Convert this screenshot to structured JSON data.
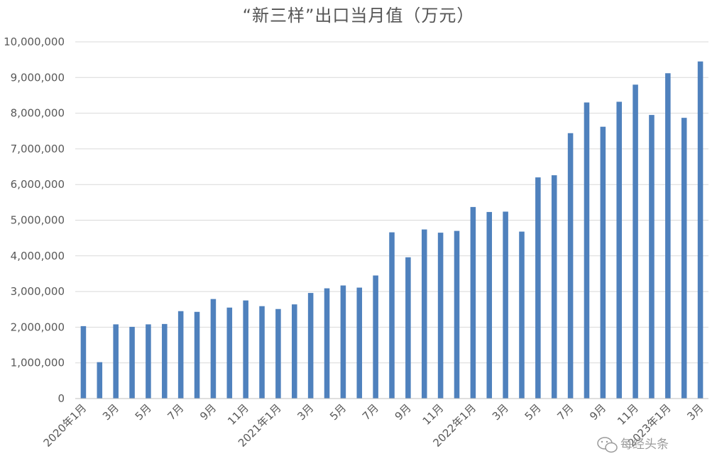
{
  "chart_data": {
    "type": "bar",
    "title": "“新三样”出口当月值（万元）",
    "xlabel": "",
    "ylabel": "",
    "ylim": [
      0,
      10000000
    ],
    "yticks": [
      0,
      1000000,
      2000000,
      3000000,
      4000000,
      5000000,
      6000000,
      7000000,
      8000000,
      9000000,
      10000000
    ],
    "ytick_labels": [
      "0",
      "1,000,000",
      "2,000,000",
      "3,000,000",
      "4,000,000",
      "5,000,000",
      "6,000,000",
      "7,000,000",
      "8,000,000",
      "9,000,000",
      "10,000,000"
    ],
    "grid": true,
    "legend": "none",
    "bar_color": "#4f81bd",
    "categories": [
      "2020年1月",
      "2月",
      "3月",
      "4月",
      "5月",
      "6月",
      "7月",
      "8月",
      "9月",
      "10月",
      "11月",
      "12月",
      "2021年1月",
      "2月",
      "3月",
      "4月",
      "5月",
      "6月",
      "7月",
      "8月",
      "9月",
      "10月",
      "11月",
      "12月",
      "2022年1月",
      "2月",
      "3月",
      "4月",
      "5月",
      "6月",
      "7月",
      "8月",
      "9月",
      "10月",
      "11月",
      "12月",
      "2023年1月",
      "2月",
      "3月"
    ],
    "tick_labels": [
      "2020年1月",
      "",
      "3月",
      "",
      "5月",
      "",
      "7月",
      "",
      "9月",
      "",
      "11月",
      "",
      "2021年1月",
      "",
      "3月",
      "",
      "5月",
      "",
      "7月",
      "",
      "9月",
      "",
      "11月",
      "",
      "2022年1月",
      "",
      "3月",
      "",
      "5月",
      "",
      "7月",
      "",
      "9月",
      "",
      "11月",
      "",
      "2023年1月",
      "",
      "3月"
    ],
    "values": [
      2030000,
      1020000,
      2080000,
      2010000,
      2080000,
      2090000,
      2450000,
      2430000,
      2790000,
      2550000,
      2750000,
      2590000,
      2510000,
      2640000,
      2960000,
      3090000,
      3170000,
      3110000,
      3450000,
      4660000,
      3960000,
      4740000,
      4650000,
      4700000,
      5370000,
      5230000,
      5240000,
      4680000,
      6200000,
      6260000,
      7440000,
      8300000,
      7620000,
      8320000,
      8800000,
      7950000,
      9120000,
      7870000,
      9450000
    ]
  },
  "watermark": {
    "text": "每经头条",
    "icon": "wechat-icon"
  }
}
